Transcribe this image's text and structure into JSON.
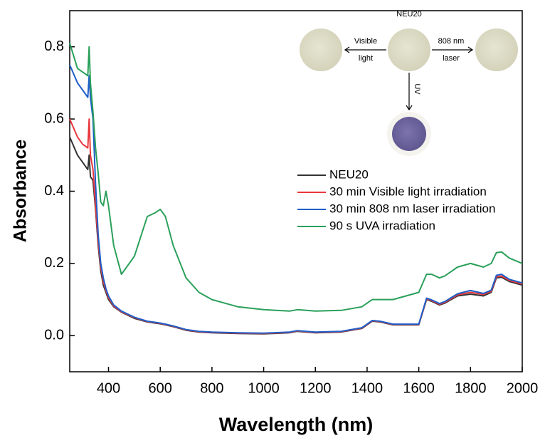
{
  "chart_data": {
    "type": "line",
    "xlabel": "Wavelength (nm)",
    "ylabel": "Absorbance",
    "x": [
      250,
      280,
      300,
      320,
      325,
      330,
      340,
      350,
      360,
      370,
      380,
      390,
      400,
      420,
      450,
      500,
      550,
      580,
      600,
      620,
      650,
      700,
      750,
      800,
      850,
      900,
      1000,
      1100,
      1130,
      1200,
      1300,
      1380,
      1420,
      1450,
      1500,
      1600,
      1630,
      1650,
      1680,
      1700,
      1750,
      1800,
      1850,
      1880,
      1900,
      1920,
      1950,
      2000
    ],
    "series": [
      {
        "name": "NEU20",
        "color": "#333333",
        "values": [
          0.55,
          0.5,
          0.48,
          0.46,
          0.5,
          0.44,
          0.43,
          0.35,
          0.25,
          0.18,
          0.14,
          0.12,
          0.1,
          0.08,
          0.065,
          0.048,
          0.038,
          0.035,
          0.033,
          0.03,
          0.025,
          0.015,
          0.01,
          0.008,
          0.007,
          0.006,
          0.005,
          0.008,
          0.012,
          0.008,
          0.01,
          0.02,
          0.04,
          0.038,
          0.03,
          0.03,
          0.1,
          0.095,
          0.085,
          0.09,
          0.11,
          0.115,
          0.11,
          0.12,
          0.16,
          0.162,
          0.15,
          0.14
        ]
      },
      {
        "name": "30 min Visible light irradiation",
        "color": "#e8383d",
        "values": [
          0.6,
          0.55,
          0.53,
          0.52,
          0.6,
          0.5,
          0.46,
          0.36,
          0.26,
          0.19,
          0.15,
          0.125,
          0.105,
          0.082,
          0.066,
          0.05,
          0.039,
          0.036,
          0.034,
          0.031,
          0.026,
          0.016,
          0.011,
          0.009,
          0.008,
          0.007,
          0.006,
          0.009,
          0.013,
          0.009,
          0.011,
          0.021,
          0.041,
          0.039,
          0.031,
          0.031,
          0.102,
          0.097,
          0.087,
          0.092,
          0.113,
          0.12,
          0.114,
          0.123,
          0.163,
          0.165,
          0.153,
          0.143
        ]
      },
      {
        "name": "30 min 808 nm laser irradiation",
        "color": "#1f5fc8",
        "values": [
          0.75,
          0.7,
          0.68,
          0.66,
          0.72,
          0.66,
          0.6,
          0.42,
          0.28,
          0.2,
          0.16,
          0.13,
          0.11,
          0.085,
          0.068,
          0.051,
          0.04,
          0.037,
          0.035,
          0.032,
          0.027,
          0.017,
          0.012,
          0.01,
          0.009,
          0.008,
          0.007,
          0.01,
          0.014,
          0.01,
          0.012,
          0.022,
          0.042,
          0.04,
          0.032,
          0.032,
          0.104,
          0.099,
          0.089,
          0.094,
          0.116,
          0.125,
          0.117,
          0.126,
          0.167,
          0.17,
          0.156,
          0.146
        ]
      },
      {
        "name": "90 s UVA irradiation",
        "color": "#2aa05a",
        "values": [
          0.81,
          0.74,
          0.73,
          0.72,
          0.8,
          0.7,
          0.62,
          0.52,
          0.45,
          0.37,
          0.36,
          0.4,
          0.36,
          0.25,
          0.17,
          0.22,
          0.33,
          0.34,
          0.35,
          0.33,
          0.25,
          0.16,
          0.12,
          0.1,
          0.09,
          0.08,
          0.072,
          0.068,
          0.072,
          0.068,
          0.07,
          0.08,
          0.1,
          0.1,
          0.1,
          0.12,
          0.17,
          0.17,
          0.16,
          0.165,
          0.19,
          0.2,
          0.19,
          0.2,
          0.23,
          0.232,
          0.215,
          0.2
        ]
      }
    ],
    "xlim": [
      250,
      2000
    ],
    "xticks": [
      400,
      600,
      800,
      1000,
      1200,
      1400,
      1600,
      1800,
      2000
    ],
    "ylim": [
      -0.1,
      0.9
    ],
    "yticks": [
      {
        "value": 0,
        "label": "0.0"
      },
      0.2,
      0.4,
      0.6,
      0.8
    ],
    "inset": {
      "center": "NEU20",
      "left": [
        "Visible",
        "light"
      ],
      "right": [
        "808 nm",
        "laser"
      ],
      "down": "UV"
    }
  }
}
